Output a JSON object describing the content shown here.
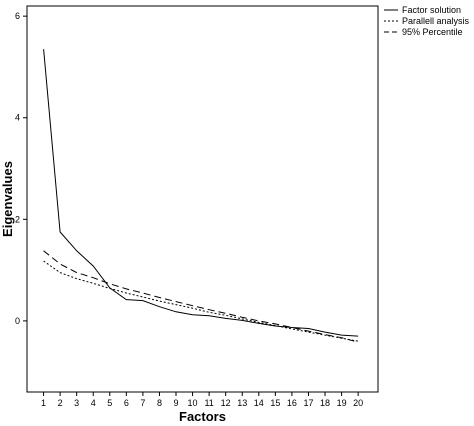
{
  "chart_data": {
    "type": "line",
    "title": "",
    "xlabel": "Factors",
    "ylabel": "Eigenvalues",
    "x": [
      1,
      2,
      3,
      4,
      5,
      6,
      7,
      8,
      9,
      10,
      11,
      12,
      13,
      14,
      15,
      16,
      17,
      18,
      19,
      20
    ],
    "x_tick_labels": [
      "1",
      "2",
      "3",
      "4",
      "5",
      "6",
      "7",
      "8",
      "9",
      "10",
      "11",
      "12",
      "13",
      "14",
      "15",
      "16",
      "17",
      "18",
      "19",
      "20"
    ],
    "xlim": [
      0,
      21.2
    ],
    "ylim": [
      -1.4,
      6.2
    ],
    "y_ticks": [
      0,
      2,
      4,
      6
    ],
    "y_tick_labels": [
      "0",
      "2",
      "4",
      "6"
    ],
    "grid": false,
    "legend_position": "top-right",
    "series": [
      {
        "name": "Factor solution",
        "style": "solid",
        "values": [
          5.35,
          1.75,
          1.38,
          1.08,
          0.65,
          0.42,
          0.4,
          0.28,
          0.18,
          0.12,
          0.1,
          0.05,
          0.01,
          -0.05,
          -0.1,
          -0.13,
          -0.15,
          -0.22,
          -0.28,
          -0.3
        ]
      },
      {
        "name": "Parallell analysis",
        "style": "dotted",
        "values": [
          1.18,
          0.95,
          0.83,
          0.74,
          0.64,
          0.55,
          0.47,
          0.39,
          0.32,
          0.25,
          0.17,
          0.11,
          0.04,
          -0.03,
          -0.09,
          -0.16,
          -0.22,
          -0.28,
          -0.34,
          -0.4
        ]
      },
      {
        "name": "95% Percentile",
        "style": "dashed",
        "values": [
          1.38,
          1.12,
          0.95,
          0.85,
          0.73,
          0.63,
          0.55,
          0.46,
          0.38,
          0.3,
          0.22,
          0.15,
          0.07,
          0.0,
          -0.06,
          -0.13,
          -0.2,
          -0.27,
          -0.33,
          -0.42
        ]
      }
    ]
  },
  "colors": {
    "series_stroke": "#000000",
    "axis": "#000000",
    "background": "#ffffff"
  }
}
